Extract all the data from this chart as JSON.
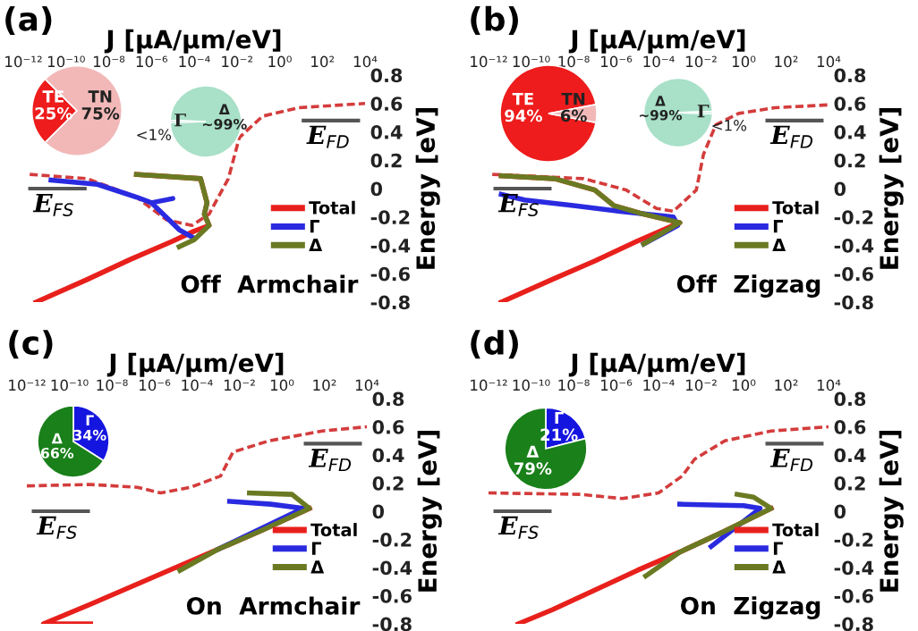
{
  "chart_data": [
    {
      "type": "line",
      "title": "(a)",
      "xlabel": "J [µA/µm/eV]",
      "ylabel": "Energy [eV]",
      "log": "x",
      "legend": "bottom right",
      "xlim": [
        1e-12,
        10000.0
      ],
      "xticks": [
        {
          "value": 1e-12,
          "label": "10⁻¹²"
        },
        {
          "value": 1e-10,
          "label": "10⁻¹⁰"
        },
        {
          "value": 1e-08,
          "label": "10⁻⁸"
        },
        {
          "value": 1e-06,
          "label": "10⁻⁶"
        },
        {
          "value": 0.0001,
          "label": "10⁻⁴"
        },
        {
          "value": 0.01,
          "label": "10⁻²"
        },
        {
          "value": 1,
          "label": "10⁰"
        },
        {
          "value": 100,
          "label": "10²"
        },
        {
          "value": 10000.0,
          "label": "10⁴"
        }
      ],
      "ylim": [
        -0.8,
        0.8
      ],
      "yticks": [
        -0.8,
        -0.6,
        -0.4,
        -0.2,
        0,
        0.2,
        0.4,
        0.6,
        0.8
      ],
      "series": [
        {
          "line_style": "dashed",
          "color": "#d43c3c",
          "x": [
            2e-12,
            1e-09,
            2e-07,
            5e-06,
            8e-05,
            0.0005,
            0.004,
            0.013,
            0.16,
            8,
            10000.0
          ],
          "values": [
            0.1,
            0.07,
            -0.06,
            -0.22,
            -0.26,
            -0.18,
            0.07,
            0.36,
            0.51,
            0.57,
            0.6
          ]
        },
        {
          "name": "Total",
          "color": "#e8201c",
          "x": [
            4e-12,
            1e-09,
            1e-07,
            1e-05,
            0.0001,
            0.0005,
            0.0003,
            0.0004,
            0.0002,
            2e-07
          ],
          "values": [
            -0.8,
            -0.64,
            -0.5,
            -0.37,
            -0.3,
            -0.26,
            -0.18,
            -0.1,
            0.07,
            0.1
          ]
        },
        {
          "name": "Γ",
          "color": "#2a2ae0",
          "x": [
            2e-11,
            3e-09,
            2e-07,
            1e-06,
            1e-05,
            1e-06,
            2e-05,
            0.0001
          ],
          "values": [
            0.06,
            0.03,
            -0.06,
            -0.1,
            -0.07,
            -0.1,
            -0.29,
            -0.35
          ]
        },
        {
          "name": "Δ",
          "color": "#6a7a22",
          "x": [
            2e-05,
            0.0001,
            0.0005,
            0.0003,
            0.0004,
            0.0002,
            2e-07
          ],
          "values": [
            -0.41,
            -0.36,
            -0.26,
            -0.18,
            -0.1,
            0.07,
            0.1
          ]
        }
      ],
      "annotations": [
        "Off  Armchair",
        "E$_{FS}$",
        "E$_{FD}$"
      ]
    },
    {
      "type": "pie",
      "categories": [
        "TE",
        "TN"
      ],
      "values": [
        25,
        75
      ],
      "value_labels": [
        "25%",
        "75%"
      ],
      "colors": [
        "#ee1c1c",
        "#f2b8b8"
      ]
    },
    {
      "type": "pie",
      "categories": [
        "Δ",
        "Γ"
      ],
      "values": [
        99,
        1
      ],
      "value_labels": [
        "~99%",
        "<1%"
      ],
      "colors": [
        "#a8e0c8",
        "#a8e0c8"
      ]
    },
    {
      "type": "line",
      "title": "(b)",
      "xlabel": "J [µA/µm/eV]",
      "ylabel": "Energy [eV]",
      "log": "x",
      "legend": "bottom right",
      "xlim": [
        1e-12,
        10000.0
      ],
      "xticks": [
        {
          "value": 1e-12,
          "label": "10⁻¹²"
        },
        {
          "value": 1e-10,
          "label": "10⁻¹⁰"
        },
        {
          "value": 1e-08,
          "label": "10⁻⁸"
        },
        {
          "value": 1e-06,
          "label": "10⁻⁶"
        },
        {
          "value": 0.0001,
          "label": "10⁻⁴"
        },
        {
          "value": 0.01,
          "label": "10⁻²"
        },
        {
          "value": 1,
          "label": "10⁰"
        },
        {
          "value": 100,
          "label": "10²"
        },
        {
          "value": 10000.0,
          "label": "10⁴"
        }
      ],
      "ylim": [
        -0.8,
        0.8
      ],
      "yticks": [
        -0.8,
        -0.6,
        -0.4,
        -0.2,
        0,
        0.2,
        0.4,
        0.6,
        0.8
      ],
      "series": [
        {
          "line_style": "dashed",
          "color": "#d43c3c",
          "x": [
            1.5e-12,
            3e-08,
            3e-06,
            8e-05,
            0.0005,
            0.006,
            0.013,
            0.05,
            0.6,
            30,
            10000.0
          ],
          "values": [
            0.1,
            0.07,
            -0.01,
            -0.14,
            -0.16,
            -0.01,
            0.24,
            0.45,
            0.53,
            0.57,
            0.59
          ]
        },
        {
          "name": "Total",
          "color": "#e8201c",
          "x": [
            4e-12,
            1e-09,
            1e-07,
            1e-05,
            0.001,
            2e-05,
            8e-07,
            1e-07,
            1.3e-09,
            4e-12
          ],
          "values": [
            -0.8,
            -0.64,
            -0.51,
            -0.37,
            -0.24,
            -0.18,
            -0.12,
            -0.01,
            0.07,
            0.09
          ]
        },
        {
          "name": "Γ",
          "color": "#2a2ae0",
          "x": [
            4e-12,
            5e-11,
            1e-08,
            1.6e-06,
            0.0005,
            0.0008,
            2e-05
          ],
          "values": [
            -0.04,
            -0.08,
            -0.12,
            -0.16,
            -0.2,
            -0.26,
            -0.39
          ]
        },
        {
          "name": "Δ",
          "color": "#6a7a22",
          "x": [
            2e-05,
            0.001,
            2e-05,
            8e-07,
            1e-07,
            1.3e-09,
            4e-12
          ],
          "values": [
            -0.39,
            -0.24,
            -0.18,
            -0.12,
            -0.01,
            0.07,
            0.09
          ]
        }
      ],
      "annotations": [
        "Off  Zigzag",
        "E$_{FS}$",
        "E$_{FD}$"
      ]
    },
    {
      "type": "pie",
      "categories": [
        "TE",
        "TN"
      ],
      "values": [
        94,
        6
      ],
      "value_labels": [
        "94%",
        "6%"
      ],
      "colors": [
        "#ee1c1c",
        "#f2b8b8"
      ]
    },
    {
      "type": "pie",
      "categories": [
        "Δ",
        "Γ"
      ],
      "values": [
        99,
        1
      ],
      "value_labels": [
        "~99%",
        "<1%"
      ],
      "colors": [
        "#a8e0c8",
        "#a8e0c8"
      ]
    },
    {
      "type": "line",
      "title": "(c)",
      "xlabel": "J [µA/µm/eV]",
      "ylabel": "Energy [eV]",
      "log": "x",
      "legend": "bottom right",
      "xlim": [
        1e-12,
        10000.0
      ],
      "xticks": [
        {
          "value": 1e-12,
          "label": "10⁻¹²"
        },
        {
          "value": 1e-10,
          "label": "10⁻¹⁰"
        },
        {
          "value": 1e-08,
          "label": "10⁻⁸"
        },
        {
          "value": 1e-06,
          "label": "10⁻⁶"
        },
        {
          "value": 0.0001,
          "label": "10⁻⁴"
        },
        {
          "value": 0.01,
          "label": "10⁻²"
        },
        {
          "value": 1,
          "label": "10⁰"
        },
        {
          "value": 100,
          "label": "10²"
        },
        {
          "value": 10000.0,
          "label": "10⁴"
        }
      ],
      "ylim": [
        -0.8,
        0.8
      ],
      "yticks": [
        -0.8,
        -0.6,
        -0.4,
        -0.2,
        0,
        0.2,
        0.4,
        0.6,
        0.8
      ],
      "series": [
        {
          "line_style": "dashed",
          "color": "#d43c3c",
          "x": [
            1e-12,
            1e-09,
            1.6e-07,
            2e-06,
            5e-05,
            0.0013,
            0.005,
            0.25,
            80,
            10000.0
          ],
          "values": [
            0.18,
            0.19,
            0.17,
            0.13,
            0.17,
            0.25,
            0.42,
            0.5,
            0.57,
            0.6
          ]
        },
        {
          "name": "Total",
          "color": "#e8201c",
          "x": [
            1e-09,
            6e-12,
            1e-09,
            1e-07,
            1e-05,
            0.001,
            0.1,
            20
          ],
          "values": [
            -0.8,
            -0.8,
            -0.66,
            -0.53,
            -0.4,
            -0.27,
            -0.14,
            0.02
          ]
        },
        {
          "name": "Γ",
          "color": "#2a2ae0",
          "x": [
            0.0035,
            0.3,
            10,
            0.001
          ],
          "values": [
            0.07,
            0.05,
            0.02,
            -0.27
          ]
        },
        {
          "name": "Δ",
          "color": "#6a7a22",
          "x": [
            1.6e-05,
            0.001,
            0.1,
            20,
            3,
            0.03
          ],
          "values": [
            -0.42,
            -0.27,
            -0.14,
            0.02,
            0.12,
            0.13
          ]
        }
      ],
      "annotations": [
        "On  Armchair",
        "E$_{FS}$",
        "E$_{FD}$"
      ]
    },
    {
      "type": "pie",
      "categories": [
        "Γ",
        "Δ"
      ],
      "values": [
        34,
        66
      ],
      "value_labels": [
        "34%",
        "66%"
      ],
      "colors": [
        "#1515e0",
        "#1a801a"
      ]
    },
    {
      "type": "line",
      "title": "(d)",
      "xlabel": "J [µA/µm/eV]",
      "ylabel": "Energy [eV]",
      "log": "x",
      "legend": "bottom right",
      "xlim": [
        1e-12,
        10000.0
      ],
      "xticks": [
        {
          "value": 1e-12,
          "label": "10⁻¹²"
        },
        {
          "value": 1e-10,
          "label": "10⁻¹⁰"
        },
        {
          "value": 1e-08,
          "label": "10⁻⁸"
        },
        {
          "value": 1e-06,
          "label": "10⁻⁶"
        },
        {
          "value": 0.0001,
          "label": "10⁻⁴"
        },
        {
          "value": 0.01,
          "label": "10⁻²"
        },
        {
          "value": 1,
          "label": "10⁰"
        },
        {
          "value": 100,
          "label": "10²"
        },
        {
          "value": 10000.0,
          "label": "10⁴"
        }
      ],
      "ylim": [
        -0.8,
        0.8
      ],
      "yticks": [
        -0.8,
        -0.6,
        -0.4,
        -0.2,
        0,
        0.2,
        0.4,
        0.6,
        0.8
      ],
      "series": [
        {
          "line_style": "dashed",
          "color": "#d43c3c",
          "x": [
            1e-12,
            2e-08,
            2e-06,
            0.0001,
            0.0013,
            0.005,
            0.13,
            20,
            10000.0
          ],
          "values": [
            0.13,
            0.12,
            0.09,
            0.13,
            0.25,
            0.37,
            0.5,
            0.57,
            0.6
          ]
        },
        {
          "name": "Total",
          "color": "#e8201c",
          "x": [
            2.5e-11,
            1e-09,
            1e-07,
            1e-05,
            0.001,
            0.1,
            20
          ],
          "values": [
            -0.8,
            -0.7,
            -0.56,
            -0.42,
            -0.29,
            -0.15,
            0.02
          ]
        },
        {
          "name": "Γ",
          "color": "#2a2ae0",
          "x": [
            0.001,
            1,
            6,
            0.03
          ],
          "values": [
            0.05,
            0.04,
            0.02,
            -0.25
          ]
        },
        {
          "name": "Δ",
          "color": "#6a7a22",
          "x": [
            2.5e-05,
            0.001,
            0.1,
            20,
            3,
            0.5
          ],
          "values": [
            -0.46,
            -0.29,
            -0.15,
            0.02,
            0.1,
            0.12
          ]
        }
      ],
      "annotations": [
        "On  Zigzag",
        "E$_{FS}$",
        "E$_{FD}$"
      ]
    },
    {
      "type": "pie",
      "categories": [
        "Γ",
        "Δ"
      ],
      "values": [
        21,
        79
      ],
      "value_labels": [
        "21%",
        "79%"
      ],
      "colors": [
        "#1515e0",
        "#1a801a"
      ]
    }
  ]
}
